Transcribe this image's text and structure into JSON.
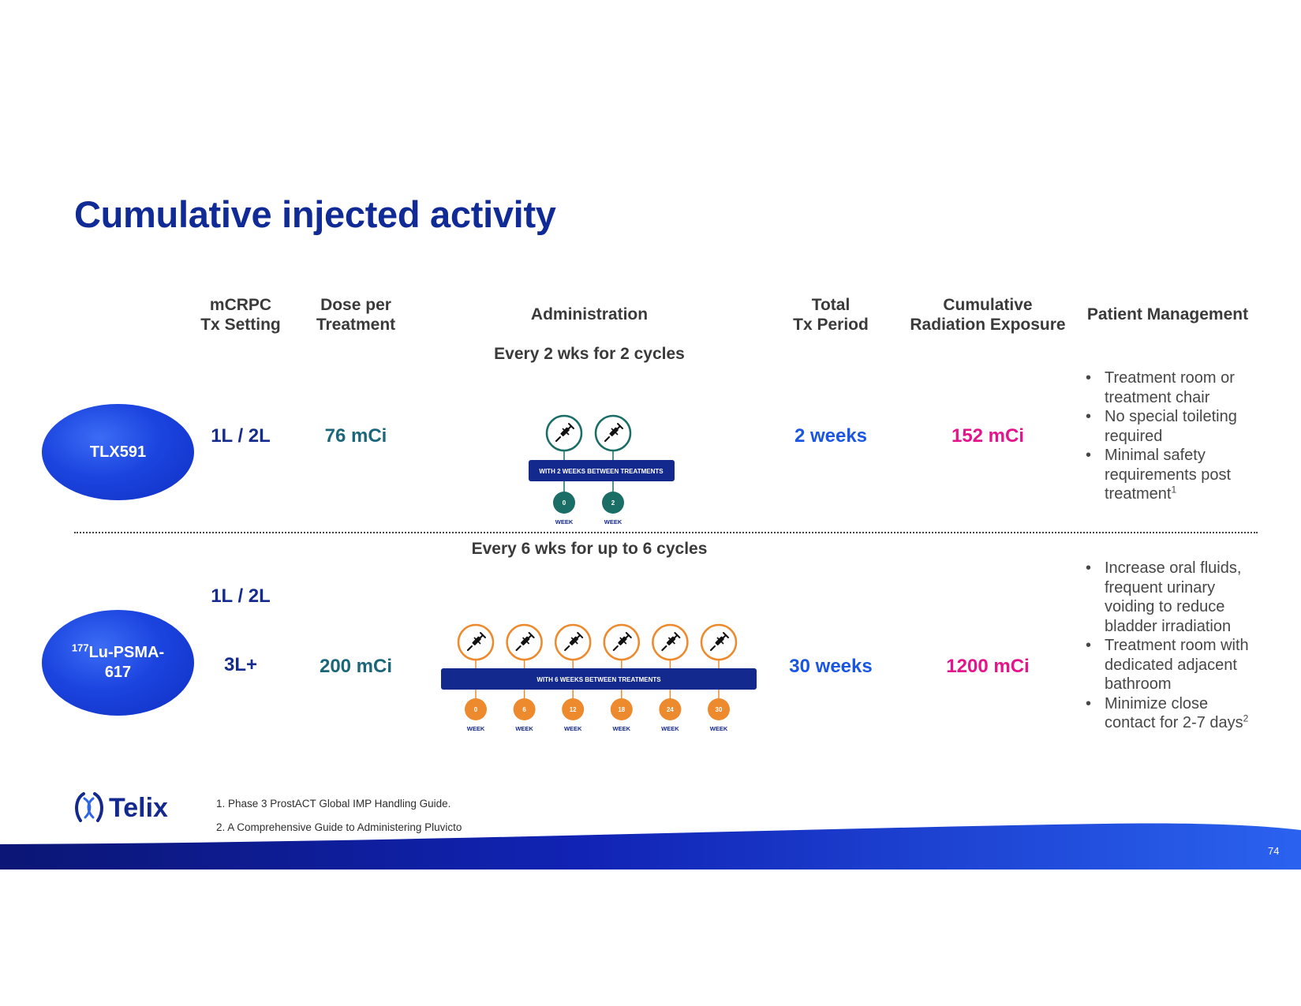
{
  "page": {
    "title": "Cumulative injected activity",
    "page_number": "74"
  },
  "headers": {
    "tx_setting": "mCRPC\nTx Setting",
    "dose": "Dose per\nTreatment",
    "administration": "Administration",
    "total_period": "Total\nTx Period",
    "cumulative": "Cumulative\nRadiation Exposure",
    "patient_mgmt": "Patient Management"
  },
  "rows": [
    {
      "product": "TLX591",
      "schedule": "Every 2 wks for 2 cycles",
      "tx_setting": "1L / 2L",
      "dose": "76 mCi",
      "timeline_banner": "WITH 2 WEEKS BETWEEN TREATMENTS",
      "weeks": [
        "0",
        "2"
      ],
      "week_label": "WEEK",
      "total_period": "2 weeks",
      "cumulative": "152 mCi",
      "management": [
        {
          "text": "Treatment room or treatment chair",
          "sup": ""
        },
        {
          "text": "No special toileting required",
          "sup": ""
        },
        {
          "text": "Minimal safety requirements post treatment",
          "sup": "1"
        }
      ]
    },
    {
      "product_sup": "177",
      "product": "Lu-PSMA-617",
      "schedule": "Every 6 wks for up to 6 cycles",
      "tx_setting_a": "1L / 2L",
      "tx_setting_b": "3L+",
      "dose": "200 mCi",
      "timeline_banner": "WITH 6 WEEKS BETWEEN TREATMENTS",
      "weeks": [
        "0",
        "6",
        "12",
        "18",
        "24",
        "30"
      ],
      "week_label": "WEEK",
      "total_period": "30 weeks",
      "cumulative": "1200 mCi",
      "management": [
        {
          "text": "Increase oral fluids, frequent urinary voiding to reduce bladder irradiation",
          "sup": ""
        },
        {
          "text": "Treatment room with dedicated adjacent bathroom",
          "sup": ""
        },
        {
          "text": "Minimize close contact for 2-7 days",
          "sup": "2"
        }
      ]
    }
  ],
  "footnotes": [
    "1. Phase 3 ProstACT Global IMP Handling Guide.",
    "2. A Comprehensive Guide to Administering Pluvicto"
  ],
  "logo": {
    "text": "Telix"
  },
  "colors": {
    "title": "#102a96",
    "teal_timeline": "#1a6e66",
    "orange_timeline": "#ee8a2e",
    "banner": "#14298d",
    "magenta": "#e4148a",
    "blue": "#1b56e2"
  },
  "icons": [
    "syringe-icon",
    "telix-logo-icon"
  ]
}
